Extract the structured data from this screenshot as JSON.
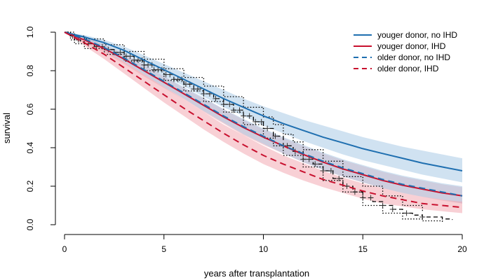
{
  "chart_data": {
    "type": "line",
    "title": "",
    "xlabel": "years after transplantation",
    "ylabel": "survival",
    "xlim": [
      0,
      20
    ],
    "ylim": [
      0,
      1
    ],
    "xticks": [
      "0",
      "5",
      "10",
      "15",
      "20"
    ],
    "yticks": [
      "0.0",
      "0.2",
      "0.4",
      "0.6",
      "0.8",
      "1.0"
    ],
    "grid": false,
    "legend_position": "top-right",
    "colors": {
      "blue": "#1f6fb0",
      "red": "#c8102e",
      "blue_band": "#a9cbe6",
      "red_band": "#f2a9b3",
      "km": "#000000"
    },
    "series": [
      {
        "name": "youger donor, no IHD",
        "color": "#1f6fb0",
        "dash": "solid",
        "x": [
          0,
          1,
          2,
          3,
          4,
          5,
          6,
          7,
          8,
          9,
          10,
          11,
          12,
          13,
          14,
          15,
          16,
          17,
          18,
          19,
          20
        ],
        "y": [
          1.0,
          0.975,
          0.945,
          0.905,
          0.855,
          0.805,
          0.755,
          0.705,
          0.655,
          0.61,
          0.565,
          0.525,
          0.49,
          0.455,
          0.425,
          0.395,
          0.37,
          0.345,
          0.32,
          0.3,
          0.28
        ],
        "upper": [
          1.0,
          0.985,
          0.96,
          0.925,
          0.88,
          0.835,
          0.79,
          0.745,
          0.7,
          0.655,
          0.615,
          0.58,
          0.545,
          0.515,
          0.485,
          0.455,
          0.43,
          0.405,
          0.385,
          0.365,
          0.345
        ],
        "lower": [
          1.0,
          0.965,
          0.93,
          0.885,
          0.83,
          0.775,
          0.72,
          0.665,
          0.61,
          0.565,
          0.515,
          0.475,
          0.435,
          0.4,
          0.365,
          0.335,
          0.31,
          0.285,
          0.26,
          0.24,
          0.22
        ]
      },
      {
        "name": "youger donor, IHD",
        "color": "#c8102e",
        "dash": "solid",
        "x": [
          0,
          1,
          2,
          3,
          4,
          5,
          6,
          7,
          8,
          9,
          10,
          11,
          12,
          13,
          14,
          15,
          16,
          17,
          18,
          19,
          20
        ],
        "y": [
          1.0,
          0.96,
          0.915,
          0.86,
          0.8,
          0.74,
          0.68,
          0.62,
          0.56,
          0.505,
          0.455,
          0.41,
          0.365,
          0.325,
          0.29,
          0.26,
          0.23,
          0.205,
          0.185,
          0.165,
          0.15
        ],
        "upper": [
          1.0,
          0.975,
          0.935,
          0.885,
          0.83,
          0.77,
          0.71,
          0.655,
          0.6,
          0.545,
          0.495,
          0.45,
          0.41,
          0.37,
          0.335,
          0.305,
          0.275,
          0.25,
          0.23,
          0.21,
          0.195
        ],
        "lower": [
          1.0,
          0.945,
          0.895,
          0.835,
          0.77,
          0.71,
          0.65,
          0.585,
          0.525,
          0.465,
          0.415,
          0.37,
          0.325,
          0.285,
          0.25,
          0.22,
          0.19,
          0.165,
          0.145,
          0.125,
          0.11
        ]
      },
      {
        "name": "older donor, no IHD",
        "color": "#1f6fb0",
        "dash": "dashed",
        "x": [
          0,
          1,
          2,
          3,
          4,
          5,
          6,
          7,
          8,
          9,
          10,
          11,
          12,
          13,
          14,
          15,
          16,
          17,
          18,
          19,
          20
        ],
        "y": [
          1.0,
          0.965,
          0.92,
          0.865,
          0.805,
          0.745,
          0.685,
          0.625,
          0.565,
          0.51,
          0.46,
          0.41,
          0.37,
          0.33,
          0.295,
          0.265,
          0.235,
          0.21,
          0.19,
          0.17,
          0.15
        ],
        "upper": [
          1.0,
          0.975,
          0.935,
          0.885,
          0.83,
          0.775,
          0.715,
          0.66,
          0.6,
          0.55,
          0.5,
          0.455,
          0.415,
          0.375,
          0.34,
          0.31,
          0.28,
          0.255,
          0.235,
          0.215,
          0.2
        ],
        "lower": [
          1.0,
          0.955,
          0.905,
          0.845,
          0.78,
          0.715,
          0.655,
          0.59,
          0.53,
          0.47,
          0.42,
          0.37,
          0.325,
          0.285,
          0.25,
          0.22,
          0.19,
          0.165,
          0.145,
          0.13,
          0.11
        ]
      },
      {
        "name": "older donor, IHD",
        "color": "#c8102e",
        "dash": "dashed",
        "x": [
          0,
          1,
          2,
          3,
          4,
          5,
          6,
          7,
          8,
          9,
          10,
          11,
          12,
          13,
          14,
          15,
          16,
          17,
          18,
          19,
          20
        ],
        "y": [
          1.0,
          0.945,
          0.885,
          0.815,
          0.745,
          0.675,
          0.605,
          0.54,
          0.475,
          0.415,
          0.36,
          0.315,
          0.275,
          0.235,
          0.205,
          0.175,
          0.15,
          0.13,
          0.11,
          0.1,
          0.09
        ],
        "upper": [
          1.0,
          0.96,
          0.91,
          0.845,
          0.78,
          0.715,
          0.65,
          0.585,
          0.52,
          0.465,
          0.41,
          0.36,
          0.32,
          0.28,
          0.245,
          0.215,
          0.19,
          0.165,
          0.145,
          0.13,
          0.12
        ],
        "lower": [
          1.0,
          0.93,
          0.86,
          0.785,
          0.71,
          0.635,
          0.565,
          0.495,
          0.43,
          0.37,
          0.315,
          0.27,
          0.23,
          0.195,
          0.165,
          0.135,
          0.11,
          0.095,
          0.08,
          0.07,
          0.06
        ]
      }
    ],
    "kaplan_meier": {
      "estimate": {
        "x": [
          0,
          0.3,
          0.5,
          0.8,
          1.0,
          1.5,
          2.0,
          2.5,
          3.0,
          3.5,
          4.0,
          4.5,
          5.0,
          5.5,
          6.0,
          6.5,
          7.0,
          7.5,
          8.0,
          8.5,
          9.0,
          9.5,
          10.0,
          10.5,
          11.0,
          11.5,
          12.0,
          12.5,
          13.0,
          13.5,
          14.0,
          14.5,
          15.0,
          15.5,
          16.0,
          16.5,
          17.0,
          17.5,
          18.0,
          19.0,
          19.5
        ],
        "y": [
          1.0,
          0.98,
          0.96,
          0.95,
          0.94,
          0.925,
          0.91,
          0.895,
          0.875,
          0.855,
          0.83,
          0.805,
          0.78,
          0.755,
          0.73,
          0.705,
          0.68,
          0.655,
          0.625,
          0.595,
          0.565,
          0.535,
          0.5,
          0.46,
          0.41,
          0.38,
          0.34,
          0.315,
          0.28,
          0.24,
          0.2,
          0.17,
          0.14,
          0.12,
          0.1,
          0.08,
          0.06,
          0.05,
          0.04,
          0.03,
          0.025
        ]
      },
      "upper": {
        "x": [
          0,
          0.5,
          1.0,
          2.0,
          3.0,
          4.0,
          5.0,
          6.0,
          7.0,
          8.0,
          9.0,
          10.0,
          10.5,
          11.0,
          11.5,
          12.0,
          13.0,
          14.0,
          15.0,
          16.0,
          17.0,
          18.0
        ],
        "y": [
          1.0,
          0.98,
          0.965,
          0.935,
          0.9,
          0.86,
          0.81,
          0.765,
          0.72,
          0.665,
          0.61,
          0.56,
          0.52,
          0.47,
          0.43,
          0.39,
          0.33,
          0.25,
          0.2,
          0.15,
          0.1,
          0.07
        ]
      },
      "lower": {
        "x": [
          0,
          0.3,
          0.5,
          1.0,
          2.0,
          3.0,
          4.0,
          5.0,
          6.0,
          7.0,
          8.0,
          9.0,
          10.0,
          10.5,
          11.0,
          12.0,
          13.0,
          14.0,
          15.0,
          16.0,
          17.0,
          18.0,
          19.0
        ],
        "y": [
          1.0,
          0.96,
          0.94,
          0.915,
          0.885,
          0.85,
          0.8,
          0.75,
          0.695,
          0.64,
          0.585,
          0.52,
          0.45,
          0.41,
          0.36,
          0.3,
          0.23,
          0.17,
          0.1,
          0.06,
          0.03,
          0.02,
          0.015
        ]
      },
      "censor_x": [
        0.4,
        0.7,
        1.2,
        1.6,
        1.9,
        2.2,
        2.5,
        2.8,
        3.1,
        3.3,
        3.5,
        3.7,
        3.9,
        4.0,
        4.2,
        4.4,
        4.5,
        4.7,
        4.9,
        5.1,
        5.3,
        5.5,
        5.7,
        5.9,
        6.1,
        6.3,
        6.5,
        6.7,
        7.0,
        7.3,
        7.6,
        8.0,
        8.3,
        8.5,
        8.8,
        9.0,
        9.3,
        9.6,
        9.9,
        10.2,
        10.6,
        11.0,
        11.2,
        11.6,
        12.0,
        12.3,
        12.6,
        13.0,
        13.4,
        13.8,
        14.2,
        14.6,
        15.0,
        15.4,
        16.0,
        16.5,
        17.2,
        18.0
      ]
    }
  }
}
